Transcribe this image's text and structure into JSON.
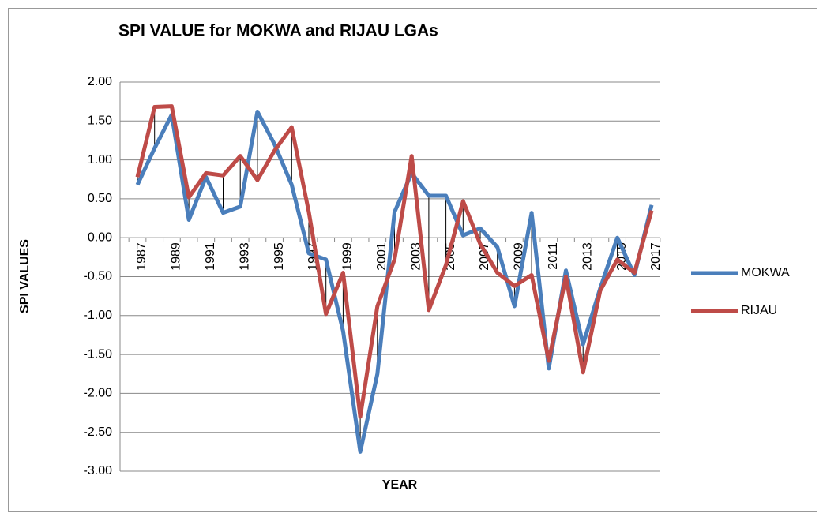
{
  "chart_data": {
    "type": "line",
    "title": "SPI VALUE for MOKWA and RIJAU LGAs",
    "x_label": "YEAR",
    "y_label": "SPI VALUES",
    "categories": [
      "1987",
      null,
      "1989",
      null,
      "1991",
      null,
      "1993",
      null,
      "1995",
      null,
      "1997",
      null,
      "1999",
      null,
      "2001",
      null,
      "2003",
      null,
      "2005",
      null,
      "2007",
      null,
      "2009",
      null,
      "2011",
      null,
      "2013",
      null,
      "2015",
      null,
      "2017"
    ],
    "series": [
      {
        "name": "MOKWA",
        "color": "#4a7ebb",
        "values": [
          0.68,
          1.15,
          1.58,
          0.23,
          0.78,
          0.32,
          0.4,
          1.62,
          1.2,
          0.68,
          -0.2,
          -0.28,
          -1.2,
          -2.75,
          -1.75,
          0.33,
          0.83,
          0.54,
          0.54,
          0.03,
          0.12,
          -0.12,
          -0.88,
          0.32,
          -1.68,
          -0.42,
          -1.37,
          -0.65,
          0.0,
          -0.48,
          0.42
        ]
      },
      {
        "name": "RIJAU",
        "color": "#be4b48",
        "values": [
          0.78,
          1.68,
          1.69,
          0.52,
          0.83,
          0.8,
          1.05,
          0.74,
          1.12,
          1.42,
          0.33,
          -0.98,
          -0.45,
          -2.3,
          -0.88,
          -0.28,
          1.05,
          -0.93,
          -0.35,
          0.47,
          -0.08,
          -0.45,
          -0.62,
          -0.48,
          -1.58,
          -0.5,
          -1.73,
          -0.68,
          -0.28,
          -0.45,
          0.35
        ]
      }
    ],
    "ylim": [
      -3,
      2
    ],
    "yticks": [
      {
        "value": 2,
        "label": "2.00"
      },
      {
        "value": 1.5,
        "label": "1.50"
      },
      {
        "value": 1,
        "label": "1.00"
      },
      {
        "value": 0.5,
        "label": "0.50"
      },
      {
        "value": 0,
        "label": "0.00"
      },
      {
        "value": -0.5,
        "label": "-0.50"
      },
      {
        "value": -1,
        "label": "-1.00"
      },
      {
        "value": -1.5,
        "label": "-1.50"
      },
      {
        "value": -2,
        "label": "-2.00"
      },
      {
        "value": -2.5,
        "label": "-2.50"
      },
      {
        "value": -3,
        "label": "-3.00"
      }
    ],
    "grid": true,
    "high_low_lines": true,
    "legend": "right"
  }
}
